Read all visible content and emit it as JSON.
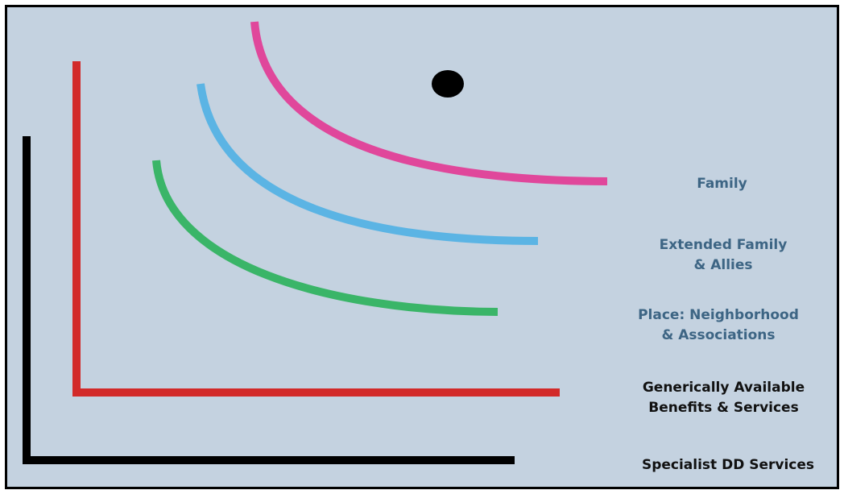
{
  "layers": [
    {
      "label": "Family",
      "color": "#e0479b"
    },
    {
      "label": "Extended Family & Allies",
      "color": "#5bb4e4"
    },
    {
      "label": "Place: Neighborhood & Associations",
      "color": "#3ab568"
    },
    {
      "label": "Generically Available Benefits & Services",
      "color": "#d22a2a"
    },
    {
      "label": "Specialist DD Services",
      "color": "#000000"
    }
  ],
  "labels": {
    "family": [
      "Family"
    ],
    "extended": [
      "Extended Family",
      "& Allies"
    ],
    "place": [
      "Place: Neighborhood",
      "& Associations"
    ],
    "generic": [
      "Generically Available",
      "Benefits & Services"
    ],
    "specialist": [
      "Specialist DD Services"
    ]
  },
  "marker": {
    "color": "#000000"
  }
}
